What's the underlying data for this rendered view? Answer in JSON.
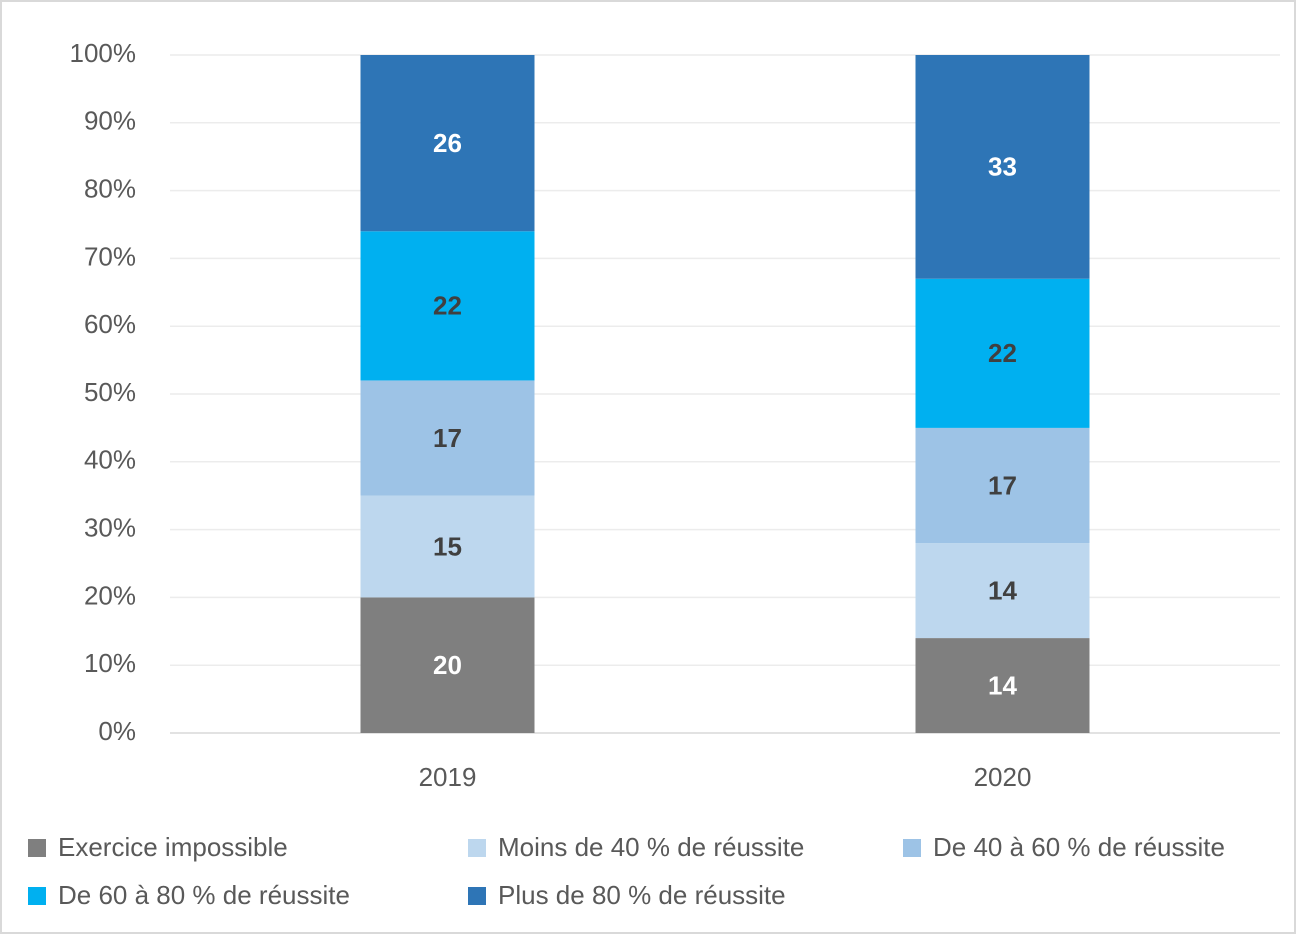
{
  "chart_data": {
    "type": "stacked_bar",
    "categories": [
      "2019",
      "2020"
    ],
    "series": [
      {
        "name": "Exercice impossible",
        "color": "#7f7f7f",
        "label_color": "#ffffff",
        "values": [
          20,
          14
        ]
      },
      {
        "name": "Moins de 40 % de réussite",
        "color": "#bdd7ee",
        "label_color": "#404040",
        "values": [
          15,
          14
        ]
      },
      {
        "name": "De 40 à 60 % de réussite",
        "color": "#9dc3e6",
        "label_color": "#404040",
        "values": [
          17,
          17
        ]
      },
      {
        "name": "De 60 à 80 % de réussite",
        "color": "#00b0f0",
        "label_color": "#404040",
        "values": [
          22,
          22
        ]
      },
      {
        "name": "Plus de 80 % de réussite",
        "color": "#2e75b6",
        "label_color": "#ffffff",
        "values": [
          26,
          33
        ]
      }
    ],
    "ylim": [
      0,
      100
    ],
    "yticks": [
      {
        "value": 0,
        "label": "0%"
      },
      {
        "value": 10,
        "label": "10%"
      },
      {
        "value": 20,
        "label": "20%"
      },
      {
        "value": 30,
        "label": "30%"
      },
      {
        "value": 40,
        "label": "40%"
      },
      {
        "value": 50,
        "label": "50%"
      },
      {
        "value": 60,
        "label": "60%"
      },
      {
        "value": 70,
        "label": "70%"
      },
      {
        "value": 80,
        "label": "80%"
      },
      {
        "value": 90,
        "label": "90%"
      },
      {
        "value": 100,
        "label": "100%"
      }
    ],
    "grid": true,
    "legend": "bottom"
  }
}
